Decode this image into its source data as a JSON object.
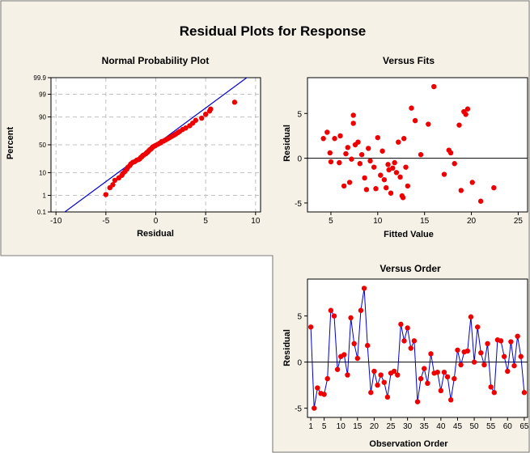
{
  "title": "Residual Plots for Response",
  "colors": {
    "background": "#f5f1e6",
    "panel": "#ffffff",
    "point": "#ee0000",
    "line": "#0000cc",
    "grid": "#c0c0c0",
    "accent": "#e8e2d2"
  },
  "chart_data": [
    {
      "type": "scatter",
      "title": "Normal Probability Plot",
      "xlabel": "Residual",
      "ylabel": "Percent",
      "xlim": [
        -10.5,
        10.5
      ],
      "ylim_percent": [
        0.1,
        99.9
      ],
      "xticks": [
        "-10",
        "-5",
        "0",
        "5",
        "10"
      ],
      "yticks": [
        "0.1",
        "1",
        "10",
        "50",
        "90",
        "99",
        "99.9"
      ],
      "grid": true,
      "y_scale": "normal probability",
      "reference_line": {
        "mean": 0,
        "sd": 2.95
      },
      "points": [
        [
          -5.0,
          1.1
        ],
        [
          -4.6,
          2.4
        ],
        [
          -4.3,
          3.3
        ],
        [
          -4.1,
          5.1
        ],
        [
          -3.7,
          6.4
        ],
        [
          -3.4,
          8.0
        ],
        [
          -3.3,
          9.3
        ],
        [
          -3.1,
          11
        ],
        [
          -2.9,
          13
        ],
        [
          -2.8,
          15
        ],
        [
          -2.6,
          17
        ],
        [
          -2.5,
          19
        ],
        [
          -2.3,
          21
        ],
        [
          -2.1,
          22
        ],
        [
          -1.9,
          24
        ],
        [
          -1.7,
          25
        ],
        [
          -1.6,
          26
        ],
        [
          -1.5,
          28
        ],
        [
          -1.4,
          29
        ],
        [
          -1.3,
          31
        ],
        [
          -1.2,
          32
        ],
        [
          -1.0,
          34
        ],
        [
          -0.9,
          36
        ],
        [
          -0.8,
          37
        ],
        [
          -0.7,
          39
        ],
        [
          -0.6,
          41
        ],
        [
          -0.5,
          42
        ],
        [
          -0.4,
          44
        ],
        [
          -0.3,
          46
        ],
        [
          -0.2,
          47
        ],
        [
          -0.1,
          48
        ],
        [
          0.0,
          49
        ],
        [
          0.2,
          51
        ],
        [
          0.4,
          53
        ],
        [
          0.5,
          54
        ],
        [
          0.6,
          56
        ],
        [
          0.8,
          57
        ],
        [
          1.0,
          59
        ],
        [
          1.2,
          61
        ],
        [
          1.4,
          63
        ],
        [
          1.6,
          65
        ],
        [
          1.8,
          67
        ],
        [
          2.0,
          69
        ],
        [
          2.2,
          71
        ],
        [
          2.4,
          73
        ],
        [
          2.7,
          76
        ],
        [
          3.0,
          78
        ],
        [
          3.4,
          81
        ],
        [
          3.7,
          84
        ],
        [
          4.0,
          87
        ],
        [
          4.6,
          89
        ],
        [
          5.0,
          92
        ],
        [
          5.4,
          94
        ],
        [
          5.5,
          95
        ],
        [
          7.9,
          97.5
        ]
      ]
    },
    {
      "type": "scatter",
      "title": "Versus Fits",
      "xlabel": "Fitted Value",
      "ylabel": "Residual",
      "xlim": [
        2.5,
        26
      ],
      "ylim": [
        -6,
        9
      ],
      "xticks": [
        "5",
        "10",
        "15",
        "20",
        "25"
      ],
      "yticks": [
        "-5",
        "0",
        "5"
      ],
      "reference_line": 0,
      "points": [
        [
          4.2,
          2.2
        ],
        [
          4.6,
          2.9
        ],
        [
          4.9,
          0.6
        ],
        [
          5.0,
          -0.4
        ],
        [
          5.4,
          2.2
        ],
        [
          5.9,
          -0.5
        ],
        [
          6.0,
          2.5
        ],
        [
          6.4,
          -3.1
        ],
        [
          6.6,
          0.5
        ],
        [
          6.8,
          1.2
        ],
        [
          7.0,
          -2.7
        ],
        [
          7.2,
          -0.1
        ],
        [
          7.4,
          3.9
        ],
        [
          7.4,
          4.8
        ],
        [
          7.6,
          1.5
        ],
        [
          7.9,
          1.8
        ],
        [
          8.1,
          -0.6
        ],
        [
          8.3,
          0.4
        ],
        [
          8.6,
          -2.2
        ],
        [
          8.8,
          -3.5
        ],
        [
          9.0,
          1.1
        ],
        [
          9.2,
          -0.3
        ],
        [
          9.6,
          -1.0
        ],
        [
          9.8,
          -3.4
        ],
        [
          10.0,
          2.3
        ],
        [
          10.3,
          -1.9
        ],
        [
          10.5,
          0.8
        ],
        [
          10.7,
          -2.4
        ],
        [
          10.9,
          -3.3
        ],
        [
          11.1,
          -0.7
        ],
        [
          11.2,
          -1.3
        ],
        [
          11.4,
          -3.9
        ],
        [
          11.6,
          -1.1
        ],
        [
          11.8,
          -0.5
        ],
        [
          12.0,
          -1.6
        ],
        [
          12.2,
          1.8
        ],
        [
          12.4,
          -2.1
        ],
        [
          12.6,
          -4.2
        ],
        [
          12.7,
          -4.4
        ],
        [
          12.8,
          2.2
        ],
        [
          13.0,
          -1.0
        ],
        [
          13.2,
          -3.1
        ],
        [
          13.6,
          5.6
        ],
        [
          14.0,
          4.2
        ],
        [
          14.6,
          0.4
        ],
        [
          15.4,
          3.8
        ],
        [
          16.0,
          8.0
        ],
        [
          17.1,
          -1.8
        ],
        [
          17.6,
          0.9
        ],
        [
          17.8,
          0.6
        ],
        [
          18.2,
          -0.6
        ],
        [
          18.7,
          3.7
        ],
        [
          18.9,
          -3.6
        ],
        [
          19.2,
          5.2
        ],
        [
          19.4,
          4.9
        ],
        [
          19.6,
          5.5
        ],
        [
          20.1,
          -2.7
        ],
        [
          21.0,
          -4.8
        ],
        [
          22.4,
          -3.3
        ]
      ]
    },
    {
      "type": "line",
      "title": "Versus Order",
      "xlabel": "Observation Order",
      "ylabel": "Residual",
      "xlim": [
        0,
        66
      ],
      "ylim": [
        -6,
        9
      ],
      "xticks": [
        "1",
        "5",
        "10",
        "15",
        "20",
        "25",
        "30",
        "35",
        "40",
        "45",
        "50",
        "55",
        "60",
        "65"
      ],
      "yticks": [
        "-5",
        "0",
        "5"
      ],
      "reference_line": 0,
      "values": [
        3.8,
        -5.0,
        -2.8,
        -3.4,
        -3.5,
        -1.8,
        5.6,
        5.0,
        -0.8,
        0.6,
        0.8,
        -1.4,
        4.8,
        2.0,
        0.4,
        5.6,
        8.0,
        1.8,
        -3.3,
        -1.0,
        -2.5,
        -1.4,
        -2.2,
        -3.8,
        -1.2,
        -1.0,
        -1.4,
        4.1,
        2.3,
        3.7,
        1.5,
        2.3,
        -4.3,
        -1.8,
        -0.7,
        -2.3,
        0.9,
        -1.2,
        -1.1,
        -3.1,
        -1.1,
        -1.6,
        -4.1,
        -1.8,
        1.3,
        -0.3,
        1.1,
        1.2,
        4.9,
        0.0,
        3.8,
        1.0,
        -0.3,
        2.0,
        -2.7,
        -3.3,
        2.4,
        2.3,
        0.6,
        -1.0,
        2.2,
        -0.4,
        2.8,
        0.6,
        -3.3
      ]
    }
  ]
}
